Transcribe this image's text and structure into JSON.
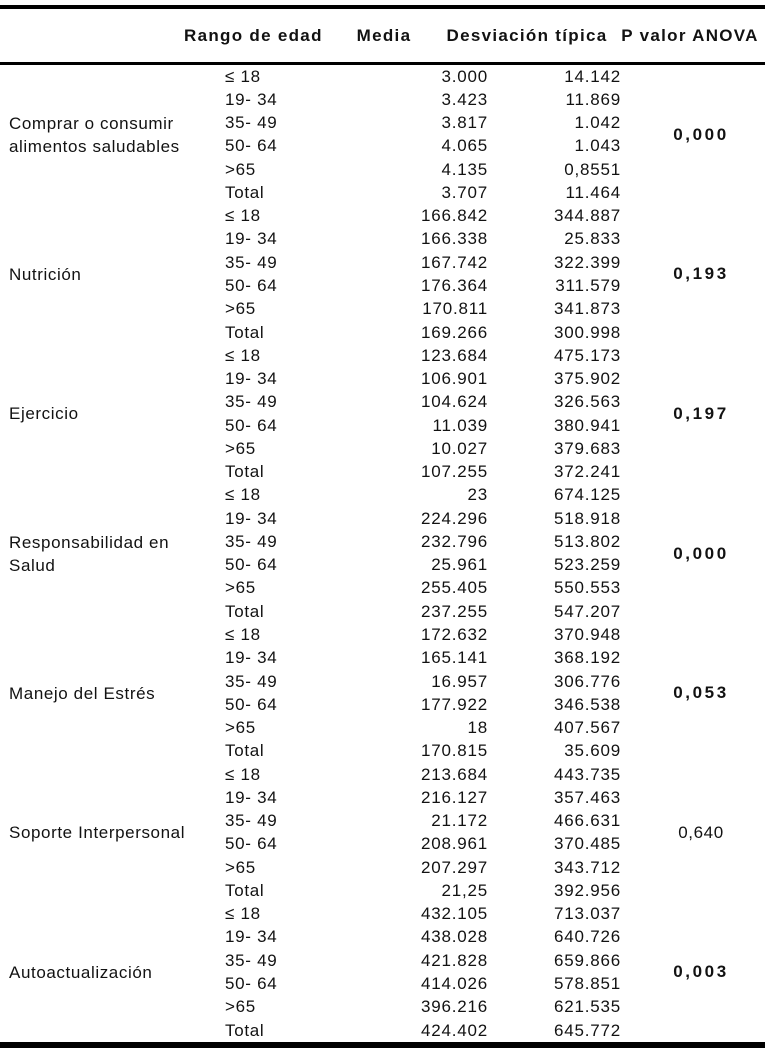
{
  "table": {
    "headers": {
      "age_range": "Rango de edad",
      "mean": "Media",
      "std_dev": "Desviación típica",
      "p_value": "P valor ANOVA"
    },
    "groups": [
      {
        "category": "Comprar o consumir\nalimentos saludables",
        "p_value": "0,000",
        "p_bold": true,
        "rows": [
          {
            "age": "≤ 18",
            "mean": "3.000",
            "sd": "14.142"
          },
          {
            "age": "19- 34",
            "mean": "3.423",
            "sd": "11.869"
          },
          {
            "age": "35- 49",
            "mean": "3.817",
            "sd": "1.042"
          },
          {
            "age": "50- 64",
            "mean": "4.065",
            "sd": "1.043"
          },
          {
            "age": ">65",
            "mean": "4.135",
            "sd": "0,8551"
          },
          {
            "age": "Total",
            "mean": "3.707",
            "sd": "11.464"
          }
        ]
      },
      {
        "category": "Nutrición",
        "p_value": "0,193",
        "p_bold": true,
        "rows": [
          {
            "age": "≤ 18",
            "mean": "166.842",
            "sd": "344.887"
          },
          {
            "age": "19- 34",
            "mean": "166.338",
            "sd": "25.833"
          },
          {
            "age": "35- 49",
            "mean": "167.742",
            "sd": "322.399"
          },
          {
            "age": "50- 64",
            "mean": "176.364",
            "sd": "311.579"
          },
          {
            "age": ">65",
            "mean": "170.811",
            "sd": "341.873"
          },
          {
            "age": "Total",
            "mean": "169.266",
            "sd": "300.998"
          }
        ]
      },
      {
        "category": "Ejercicio",
        "p_value": "0,197",
        "p_bold": true,
        "rows": [
          {
            "age": "≤ 18",
            "mean": "123.684",
            "sd": "475.173"
          },
          {
            "age": "19- 34",
            "mean": "106.901",
            "sd": "375.902"
          },
          {
            "age": "35- 49",
            "mean": "104.624",
            "sd": "326.563"
          },
          {
            "age": "50- 64",
            "mean": "11.039",
            "sd": "380.941"
          },
          {
            "age": ">65",
            "mean": "10.027",
            "sd": "379.683"
          },
          {
            "age": "Total",
            "mean": "107.255",
            "sd": "372.241"
          }
        ]
      },
      {
        "category": "Responsabilidad en\nSalud",
        "p_value": "0,000",
        "p_bold": true,
        "rows": [
          {
            "age": "≤ 18",
            "mean": "23",
            "sd": "674.125"
          },
          {
            "age": "19- 34",
            "mean": "224.296",
            "sd": "518.918"
          },
          {
            "age": "35- 49",
            "mean": "232.796",
            "sd": "513.802"
          },
          {
            "age": "50- 64",
            "mean": "25.961",
            "sd": "523.259"
          },
          {
            "age": ">65",
            "mean": "255.405",
            "sd": "550.553"
          },
          {
            "age": "Total",
            "mean": "237.255",
            "sd": "547.207"
          }
        ]
      },
      {
        "category": "Manejo del Estrés",
        "p_value": "0,053",
        "p_bold": true,
        "rows": [
          {
            "age": "≤ 18",
            "mean": "172.632",
            "sd": "370.948"
          },
          {
            "age": "19- 34",
            "mean": "165.141",
            "sd": "368.192"
          },
          {
            "age": "35- 49",
            "mean": "16.957",
            "sd": "306.776"
          },
          {
            "age": "50- 64",
            "mean": "177.922",
            "sd": "346.538"
          },
          {
            "age": ">65",
            "mean": "18",
            "sd": "407.567"
          },
          {
            "age": "Total",
            "mean": "170.815",
            "sd": "35.609"
          }
        ]
      },
      {
        "category": "Soporte Interpersonal",
        "p_value": "0,640",
        "p_bold": false,
        "rows": [
          {
            "age": "≤ 18",
            "mean": "213.684",
            "sd": "443.735"
          },
          {
            "age": "19- 34",
            "mean": "216.127",
            "sd": "357.463"
          },
          {
            "age": "35- 49",
            "mean": "21.172",
            "sd": "466.631"
          },
          {
            "age": "50- 64",
            "mean": "208.961",
            "sd": "370.485"
          },
          {
            "age": ">65",
            "mean": "207.297",
            "sd": "343.712"
          },
          {
            "age": "Total",
            "mean": "21,25",
            "sd": "392.956"
          }
        ]
      },
      {
        "category": "Autoactualización",
        "p_value": "0,003",
        "p_bold": true,
        "rows": [
          {
            "age": "≤ 18",
            "mean": "432.105",
            "sd": "713.037"
          },
          {
            "age": "19- 34",
            "mean": "438.028",
            "sd": "640.726"
          },
          {
            "age": "35- 49",
            "mean": "421.828",
            "sd": "659.866"
          },
          {
            "age": "50- 64",
            "mean": "414.026",
            "sd": "578.851"
          },
          {
            "age": ">65",
            "mean": "396.216",
            "sd": "621.535"
          },
          {
            "age": "Total",
            "mean": "424.402",
            "sd": "645.772"
          }
        ]
      }
    ]
  }
}
